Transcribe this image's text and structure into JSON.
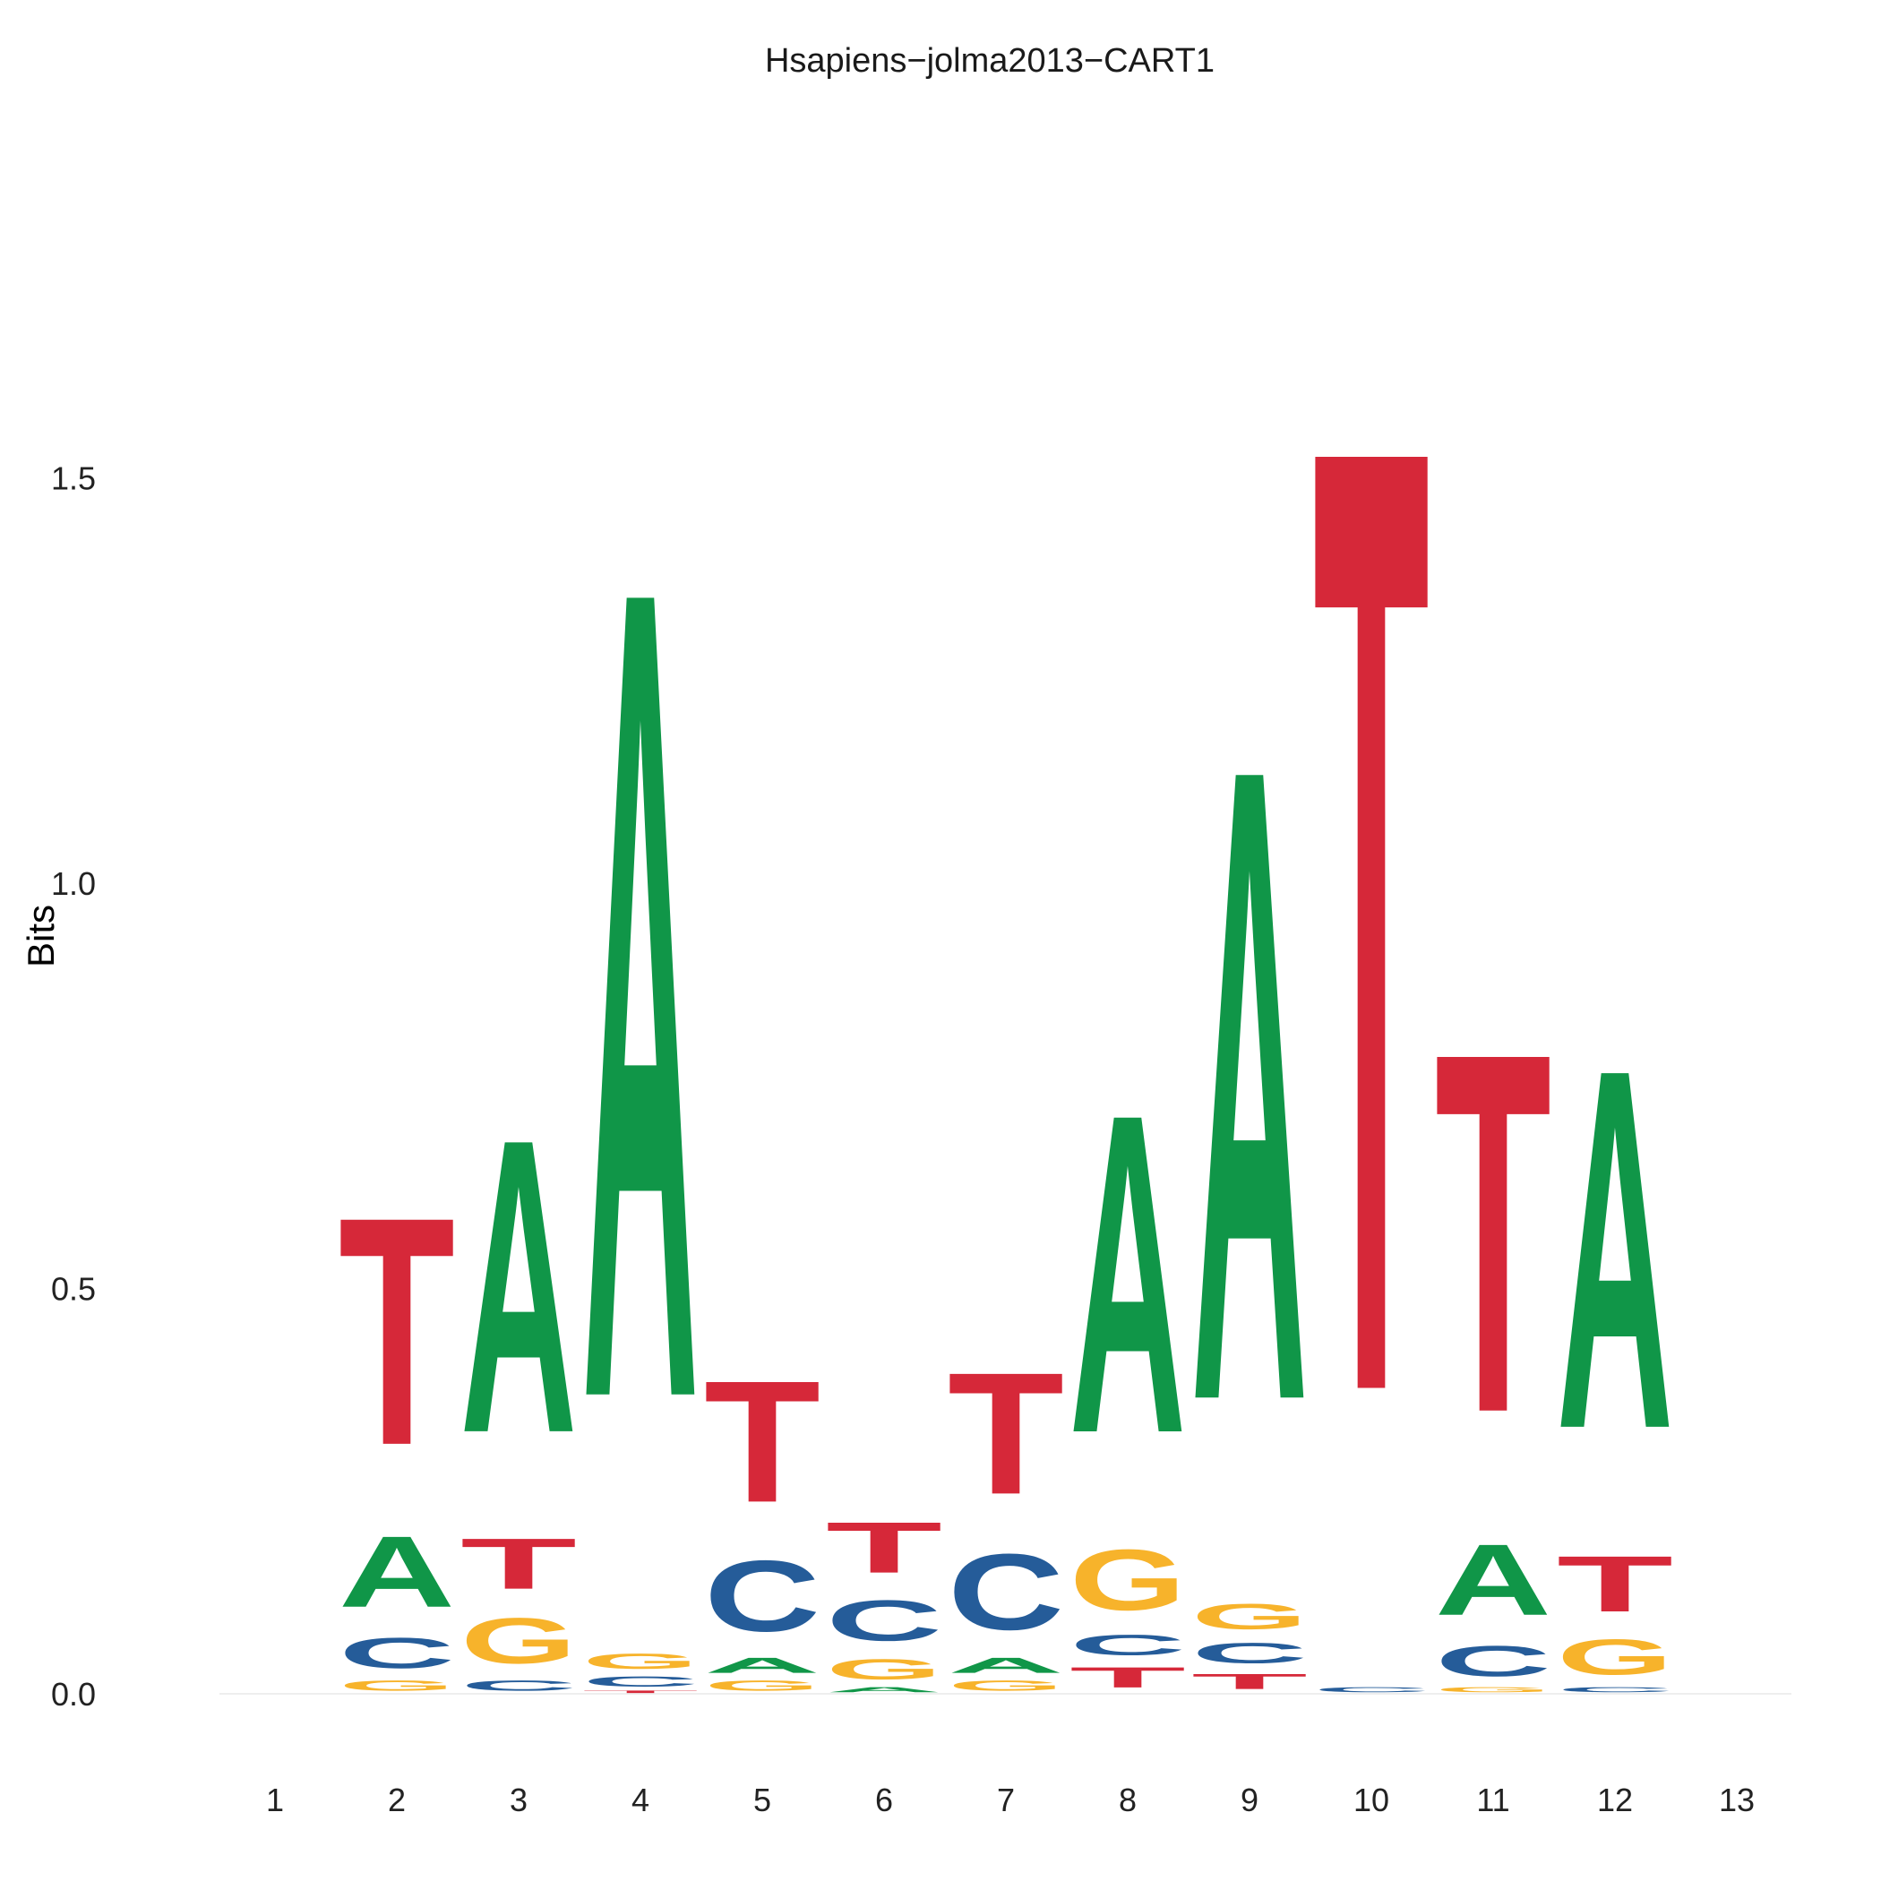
{
  "colors": {
    "A": "#109648",
    "C": "#255C99",
    "G": "#F7B32B",
    "T": "#D62839"
  },
  "chart_data": {
    "type": "sequence-logo",
    "title": "Hsapiens−jolma2013−CART1",
    "xlabel": "",
    "ylabel": "Bits",
    "ylim": [
      0,
      1.9
    ],
    "yticks": [
      "0.0",
      "0.5",
      "1.0",
      "1.5"
    ],
    "grid": false,
    "positions": [
      "1",
      "2",
      "3",
      "4",
      "5",
      "6",
      "7",
      "8",
      "9",
      "10",
      "11",
      "12",
      "13"
    ],
    "stacks": [
      [],
      [
        {
          "base": "G",
          "bits": 0.02
        },
        {
          "base": "C",
          "bits": 0.06
        },
        {
          "base": "A",
          "bits": 0.14
        },
        {
          "base": "T",
          "bits": 0.45
        }
      ],
      [
        {
          "base": "C",
          "bits": 0.02
        },
        {
          "base": "G",
          "bits": 0.09
        },
        {
          "base": "T",
          "bits": 0.1
        },
        {
          "base": "A",
          "bits": 0.58
        }
      ],
      [
        {
          "base": "T",
          "bits": 0.005
        },
        {
          "base": "C",
          "bits": 0.02
        },
        {
          "base": "G",
          "bits": 0.03
        },
        {
          "base": "A",
          "bits": 1.6
        }
      ],
      [
        {
          "base": "G",
          "bits": 0.02
        },
        {
          "base": "A",
          "bits": 0.03
        },
        {
          "base": "C",
          "bits": 0.14
        },
        {
          "base": "T",
          "bits": 0.24
        }
      ],
      [
        {
          "base": "A",
          "bits": 0.01
        },
        {
          "base": "G",
          "bits": 0.04
        },
        {
          "base": "C",
          "bits": 0.08
        },
        {
          "base": "T",
          "bits": 0.1
        }
      ],
      [
        {
          "base": "G",
          "bits": 0.02
        },
        {
          "base": "A",
          "bits": 0.03
        },
        {
          "base": "C",
          "bits": 0.15
        },
        {
          "base": "T",
          "bits": 0.24
        }
      ],
      [
        {
          "base": "T",
          "bits": 0.04
        },
        {
          "base": "C",
          "bits": 0.04
        },
        {
          "base": "G",
          "bits": 0.12
        },
        {
          "base": "A",
          "bits": 0.63
        }
      ],
      [
        {
          "base": "T",
          "bits": 0.03
        },
        {
          "base": "C",
          "bits": 0.04
        },
        {
          "base": "G",
          "bits": 0.05
        },
        {
          "base": "A",
          "bits": 1.25
        }
      ],
      [
        {
          "base": "C",
          "bits": 0.01
        },
        {
          "base": "T",
          "bits": 1.87
        }
      ],
      [
        {
          "base": "G",
          "bits": 0.01
        },
        {
          "base": "C",
          "bits": 0.06
        },
        {
          "base": "A",
          "bits": 0.14
        },
        {
          "base": "T",
          "bits": 0.71
        }
      ],
      [
        {
          "base": "C",
          "bits": 0.01
        },
        {
          "base": "G",
          "bits": 0.07
        },
        {
          "base": "T",
          "bits": 0.11
        },
        {
          "base": "A",
          "bits": 0.71
        }
      ],
      []
    ]
  }
}
